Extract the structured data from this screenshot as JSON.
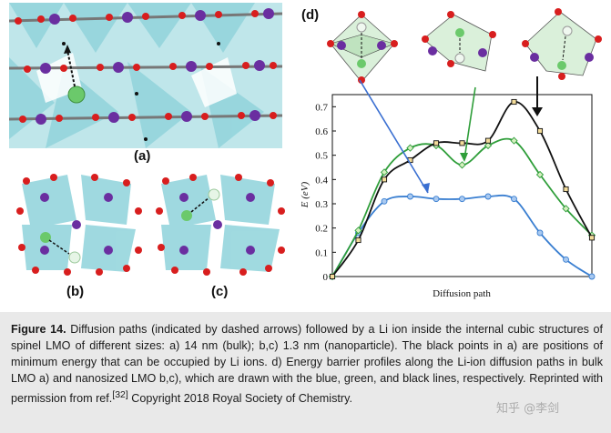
{
  "panel_labels": {
    "a": "(a)",
    "b": "(b)",
    "c": "(c)",
    "d": "(d)"
  },
  "caption": {
    "figure_label": "Figure 14.",
    "text": " Diffusion paths (indicated by dashed arrows) followed by a Li ion inside the internal cubic structures of spinel LMO of different sizes: a) 14 nm (bulk); b,c) 1.3 nm (nanoparticle). The black points in a) are positions of minimum energy that can be occupied by Li ions. d) Energy barrier profiles along the Li-ion diffusion paths in bulk LMO a) and nanosized LMO b,c), which are drawn with the blue, green, and black lines, respectively. Reprinted with permission from ref.",
    "ref": "[32]",
    "copyright": " Copyright 2018 Royal Society of Chemistry."
  },
  "watermark": "知乎 @李剑",
  "chart_data": {
    "type": "line",
    "xlabel": "Diffusion path",
    "ylabel": "E (eV)",
    "ylim": [
      0,
      0.75
    ],
    "yticks": [
      "0",
      "0.1",
      "0.2",
      "0.3",
      "0.4",
      "0.5",
      "0.6",
      "0.7"
    ],
    "series": [
      {
        "color": "#3a7fd1",
        "x": [
          0,
          1,
          2,
          3,
          4,
          5,
          6,
          7,
          8,
          9,
          10
        ],
        "values": [
          0,
          0.18,
          0.31,
          0.33,
          0.32,
          0.32,
          0.33,
          0.32,
          0.18,
          0.07,
          0
        ]
      },
      {
        "color": "#2f9e3a",
        "x": [
          0,
          1,
          2,
          3,
          4,
          5,
          6,
          7,
          8,
          9,
          10
        ],
        "values": [
          0,
          0.19,
          0.43,
          0.53,
          0.54,
          0.46,
          0.54,
          0.56,
          0.42,
          0.28,
          0.17
        ]
      },
      {
        "color": "#111111",
        "x": [
          0,
          1,
          2,
          3,
          4,
          5,
          6,
          7,
          8,
          9,
          10
        ],
        "values": [
          0,
          0.15,
          0.4,
          0.48,
          0.55,
          0.55,
          0.56,
          0.72,
          0.6,
          0.36,
          0.16
        ]
      }
    ]
  }
}
